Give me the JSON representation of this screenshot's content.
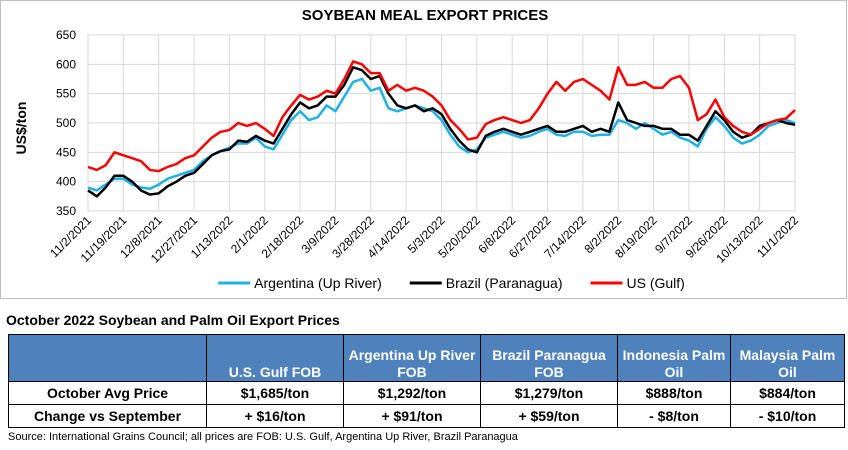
{
  "chart_data": {
    "type": "line",
    "title": "SOYBEAN MEAL EXPORT PRICES",
    "y_label": "US$/ton",
    "categories": [
      "11/2/2021",
      null,
      null,
      null,
      "11/19/2021",
      null,
      null,
      null,
      "12/8/2021",
      null,
      null,
      null,
      "12/27/2021",
      null,
      null,
      null,
      "1/13/2022",
      null,
      null,
      null,
      "2/1/2022",
      null,
      null,
      null,
      "2/18/2022",
      null,
      null,
      null,
      "3/9/2022",
      null,
      null,
      null,
      "3/28/2022",
      null,
      null,
      null,
      "4/14/2022",
      null,
      null,
      null,
      "5/3/2022",
      null,
      null,
      null,
      "5/20/2022",
      null,
      null,
      null,
      "6/8/2022",
      null,
      null,
      null,
      "6/27/2022",
      null,
      null,
      null,
      "7/14/2022",
      null,
      null,
      null,
      "8/2/2022",
      null,
      null,
      null,
      "8/19/2022",
      null,
      null,
      null,
      "9/7/2022",
      null,
      null,
      null,
      "9/26/2022",
      null,
      null,
      null,
      "10/13/2022",
      null,
      null,
      null,
      "11/1/2022"
    ],
    "series": [
      {
        "name": "Argentina (Up River)",
        "color": "#1fb1e6",
        "values": [
          390,
          385,
          395,
          405,
          405,
          395,
          390,
          388,
          395,
          405,
          410,
          415,
          420,
          435,
          445,
          452,
          458,
          465,
          465,
          475,
          460,
          455,
          480,
          505,
          520,
          505,
          510,
          530,
          520,
          545,
          570,
          575,
          555,
          560,
          525,
          520,
          525,
          530,
          525,
          520,
          505,
          480,
          460,
          450,
          455,
          475,
          480,
          485,
          480,
          475,
          478,
          485,
          490,
          480,
          478,
          485,
          485,
          478,
          480,
          480,
          505,
          500,
          490,
          500,
          490,
          480,
          485,
          475,
          470,
          460,
          490,
          510,
          495,
          475,
          465,
          470,
          480,
          495,
          500,
          505,
          500
        ]
      },
      {
        "name": "Brazil (Paranagua)",
        "color": "#000000",
        "values": [
          385,
          375,
          390,
          410,
          410,
          400,
          385,
          378,
          380,
          392,
          400,
          410,
          415,
          430,
          445,
          452,
          455,
          470,
          468,
          478,
          470,
          465,
          490,
          515,
          535,
          525,
          530,
          545,
          545,
          565,
          595,
          590,
          575,
          580,
          550,
          530,
          525,
          530,
          520,
          525,
          515,
          490,
          470,
          455,
          450,
          478,
          485,
          490,
          485,
          480,
          485,
          490,
          495,
          485,
          485,
          490,
          495,
          485,
          490,
          485,
          535,
          505,
          500,
          495,
          495,
          490,
          490,
          480,
          480,
          470,
          495,
          520,
          505,
          485,
          475,
          480,
          495,
          500,
          505,
          500,
          497
        ]
      },
      {
        "name": "US (Gulf)",
        "color": "#ff0000",
        "values": [
          425,
          420,
          428,
          450,
          445,
          440,
          435,
          420,
          418,
          425,
          430,
          440,
          445,
          460,
          475,
          485,
          488,
          500,
          495,
          500,
          490,
          478,
          510,
          530,
          548,
          540,
          545,
          555,
          550,
          575,
          605,
          600,
          585,
          585,
          555,
          565,
          555,
          560,
          555,
          545,
          530,
          505,
          490,
          472,
          475,
          498,
          505,
          510,
          505,
          500,
          505,
          525,
          550,
          570,
          555,
          570,
          575,
          565,
          555,
          540,
          595,
          565,
          565,
          570,
          560,
          560,
          575,
          580,
          560,
          505,
          515,
          540,
          510,
          495,
          485,
          480,
          490,
          500,
          505,
          508,
          522
        ]
      }
    ],
    "ylim": [
      350,
      650
    ],
    "yticks": [
      350,
      400,
      450,
      500,
      550,
      600,
      650
    ],
    "grid": true,
    "legend": "bottom"
  },
  "table": {
    "title": "October 2022 Soybean and Palm Oil Export Prices",
    "columns": [
      "U.S. Gulf FOB",
      "Argentina Up River FOB",
      "Brazil Paranagua FOB",
      "Indonesia Palm Oil",
      "Malaysia Palm Oil"
    ],
    "rows": [
      [
        "October Avg Price",
        "$1,685/ton",
        "$1,292/ton",
        "$1,279/ton",
        "$888/ton",
        "$884/ton"
      ],
      [
        "Change vs September",
        "+ $16/ton",
        "+ $91/ton",
        "+ $59/ton",
        "- $8/ton",
        "- $10/ton"
      ]
    ]
  },
  "source": "Source: International Grains Council; all prices are FOB: U.S. Gulf, Argentina Up River, Brazil Paranagua"
}
